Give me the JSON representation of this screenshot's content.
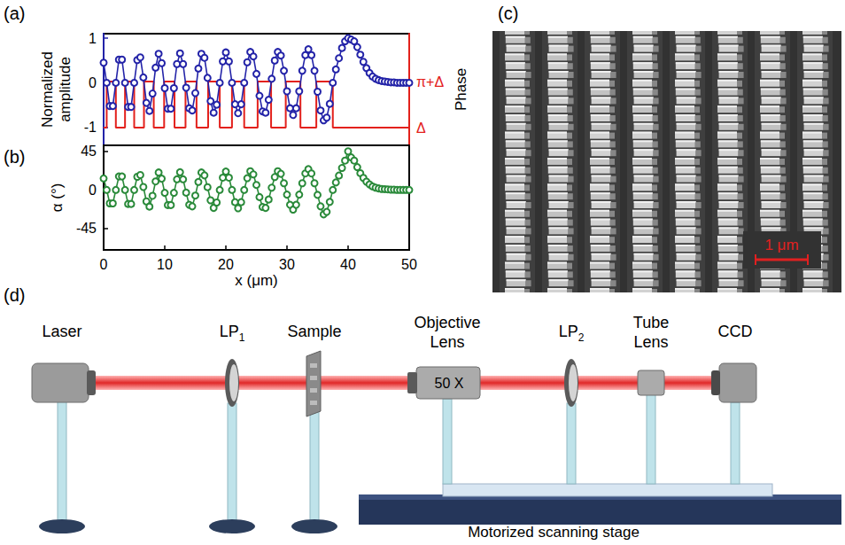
{
  "chart_data": [
    {
      "panel": "(a)",
      "type": "line",
      "y_label": "Normalized amplitude",
      "y2_label": "Phase",
      "xlim": [
        0,
        50
      ],
      "ylim": [
        -1.4,
        1.1
      ],
      "yticks": [
        -1,
        0,
        1
      ],
      "y2lim": [
        -1.2,
        6.4
      ],
      "y2ticks": [
        {
          "value": 0,
          "label": "Δ"
        },
        {
          "value": 3.1416,
          "label": "π+Δ"
        }
      ],
      "tick_labels": "y",
      "series": [
        {
          "color": "#2323a8",
          "marker": "open_circle",
          "line_style": "solid",
          "x": [
            0,
            0.5,
            1,
            1.5,
            2,
            2.5,
            3,
            3.5,
            4,
            4.5,
            5,
            5.5,
            6,
            6.5,
            7,
            7.5,
            8,
            8.5,
            9,
            9.5,
            10,
            10.5,
            11,
            11.5,
            12,
            12.5,
            13,
            13.5,
            14,
            14.5,
            15,
            15.5,
            16,
            16.5,
            17,
            17.5,
            18,
            18.5,
            19,
            19.5,
            20,
            20.5,
            21,
            21.5,
            22,
            22.5,
            23,
            23.5,
            24,
            24.5,
            25,
            25.5,
            26,
            26.5,
            27,
            27.5,
            28,
            28.5,
            29,
            29.5,
            30,
            30.5,
            31,
            31.5,
            32,
            32.5,
            33,
            33.5,
            34,
            34.5,
            35,
            35.5,
            36,
            36.5,
            37,
            37.5,
            38,
            38.5,
            39,
            39.5,
            40,
            40.5,
            41,
            41.5,
            42,
            42.5,
            43,
            43.5,
            44,
            44.5,
            45,
            45.5,
            46,
            46.5,
            47,
            47.5,
            48,
            48.5,
            49,
            49.5,
            50
          ],
          "values": [
            0.45,
            0,
            -0.52,
            -0.52,
            0,
            0.52,
            0.52,
            0,
            -0.54,
            -0.54,
            0,
            0.51,
            0.57,
            0.12,
            -0.45,
            -0.63,
            -0.24,
            0.34,
            0.65,
            0.44,
            -0.12,
            -0.58,
            -0.58,
            -0.12,
            0.42,
            0.66,
            0.42,
            -0.11,
            -0.57,
            -0.62,
            -0.23,
            0.32,
            0.65,
            0.56,
            0.11,
            -0.41,
            -0.67,
            -0.49,
            0,
            0.48,
            0.68,
            0.48,
            0,
            -0.48,
            -0.68,
            -0.48,
            0,
            0.46,
            0.69,
            0.59,
            0.2,
            -0.29,
            -0.64,
            -0.67,
            -0.38,
            0.09,
            0.5,
            0.69,
            0.61,
            0.27,
            -0.19,
            -0.57,
            -0.72,
            -0.57,
            -0.19,
            0.27,
            0.62,
            0.75,
            0.62,
            0.27,
            -0.2,
            -0.62,
            -0.84,
            -0.78,
            -0.47,
            0,
            0.3,
            0.55,
            0.78,
            0.93,
            1,
            0.97,
            0.93,
            0.8,
            0.63,
            0.47,
            0.33,
            0.22,
            0.14,
            0.09,
            0.06,
            0.04,
            0.03,
            0.02,
            0.01,
            0.01,
            0,
            0,
            0,
            0,
            0
          ]
        },
        {
          "color": "#e3211c",
          "type": "step",
          "axis": "y2",
          "marker": "none",
          "line_style": "solid",
          "x": [
            0,
            0.5,
            2,
            3.5,
            5,
            6.6,
            8.2,
            9.9,
            11.6,
            13.4,
            15.2,
            17.1,
            19,
            21,
            23,
            25.2,
            27.4,
            29.8,
            32.2,
            34.8,
            37.5,
            50
          ],
          "values": [
            0,
            3.1416,
            0,
            3.1416,
            0,
            3.1416,
            0,
            3.1416,
            0,
            3.1416,
            0,
            3.1416,
            0,
            3.1416,
            0,
            3.1416,
            0,
            3.1416,
            0,
            3.1416,
            0,
            0
          ]
        }
      ]
    },
    {
      "panel": "(b)",
      "type": "line",
      "x_label": "x (μm)",
      "y_label": "α (°)",
      "xlim": [
        0,
        50
      ],
      "xticks": [
        0,
        10,
        20,
        30,
        40,
        50
      ],
      "ylim": [
        -70,
        52
      ],
      "yticks": [
        -45,
        0,
        45
      ],
      "series": [
        {
          "color": "#2a8a3a",
          "marker": "open_circle",
          "line_style": "solid",
          "x": [
            0,
            0.5,
            1,
            1.5,
            2,
            2.5,
            3,
            3.5,
            4,
            4.5,
            5,
            5.5,
            6,
            6.5,
            7,
            7.5,
            8,
            8.5,
            9,
            9.5,
            10,
            10.5,
            11,
            11.5,
            12,
            12.5,
            13,
            13.5,
            14,
            14.5,
            15,
            15.5,
            16,
            16.5,
            17,
            17.5,
            18,
            18.5,
            19,
            19.5,
            20,
            20.5,
            21,
            21.5,
            22,
            22.5,
            23,
            23.5,
            24,
            24.5,
            25,
            25.5,
            26,
            26.5,
            27,
            27.5,
            28,
            28.5,
            29,
            29.5,
            30,
            30.5,
            31,
            31.5,
            32,
            32.5,
            33,
            33.5,
            34,
            34.5,
            35,
            35.5,
            36,
            36.5,
            37,
            37.5,
            38,
            38.5,
            39,
            39.5,
            40,
            40.5,
            41,
            41.5,
            42,
            42.5,
            43,
            43.5,
            44,
            44.5,
            45,
            45.5,
            46,
            46.5,
            47,
            47.5,
            48,
            48.5,
            49,
            49.5,
            50
          ],
          "values": [
            13.4,
            0,
            -15.7,
            -15.7,
            0,
            15.7,
            15.7,
            0,
            -16.4,
            -16.4,
            0,
            15.3,
            17.4,
            3.4,
            -13.4,
            -19.5,
            -6.9,
            9.9,
            20.3,
            13.1,
            -3.4,
            -17.7,
            -17.7,
            -3.4,
            12.4,
            20.6,
            12.4,
            -3.2,
            -17.4,
            -19.2,
            -6.6,
            9.3,
            20.3,
            17.0,
            3.2,
            -12.1,
            -21.0,
            -14.7,
            0,
            14.3,
            21.4,
            14.3,
            0,
            -14.3,
            -21.4,
            -14.3,
            0,
            13.7,
            21.8,
            18.1,
            5.8,
            -8.4,
            -19.9,
            -21.0,
            -11.2,
            2.6,
            15.0,
            21.8,
            18.8,
            7.8,
            -5.5,
            -17.4,
            -23.0,
            -17.4,
            -5.5,
            7.8,
            19.2,
            24.3,
            19.2,
            7.8,
            -5.8,
            -19.2,
            -28.6,
            -25.6,
            -14.0,
            0,
            8.7,
            16.7,
            25.6,
            34.2,
            45,
            38.0,
            34.2,
            26.6,
            19.5,
            14.0,
            9.6,
            6.4,
            4.0,
            2.6,
            1.7,
            1.1,
            0.9,
            0.6,
            0.3,
            0.3,
            0,
            0,
            0,
            0,
            0
          ]
        }
      ]
    }
  ],
  "image": {
    "panel": "(c)",
    "scale_bar": "1 μm"
  },
  "diagram": {
    "panel": "(d)",
    "components": [
      {
        "label": "Laser"
      },
      {
        "label": "LP",
        "subscript": "1"
      },
      {
        "label": "Sample"
      },
      {
        "label": "Objective Lens",
        "text": "50 X"
      },
      {
        "label": "LP",
        "subscript": "2"
      },
      {
        "label": "Tube Lens"
      },
      {
        "label": "CCD"
      }
    ],
    "stage": "Motorized scanning stage"
  }
}
